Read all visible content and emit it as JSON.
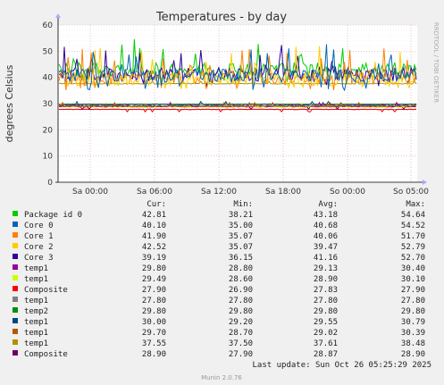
{
  "chart_data": {
    "type": "line",
    "title": "Temperatures - by day",
    "ylabel": "degrees Celsius",
    "ylim": [
      0,
      60
    ],
    "yticks": [
      "0",
      "10",
      "20",
      "30",
      "40",
      "50",
      "60"
    ],
    "x_ticks": [
      "Sa 00:00",
      "Sa 06:00",
      "Sa 12:00",
      "Sa 18:00",
      "So 00:00",
      "So 05:00"
    ],
    "side_label": "RRDTOOL / TOBI OETIKER",
    "grid": true,
    "legend_headers": [
      "Cur:",
      "Min:",
      "Avg:",
      "Max:"
    ],
    "series": [
      {
        "name": "Package id 0",
        "color": "#00cc00",
        "cur": "42.81",
        "min": "38.21",
        "avg": "43.18",
        "max": "54.64"
      },
      {
        "name": "Core 0",
        "color": "#0066b3",
        "cur": "40.10",
        "min": "35.00",
        "avg": "40.68",
        "max": "54.52"
      },
      {
        "name": "Core 1",
        "color": "#ff8000",
        "cur": "41.90",
        "min": "35.07",
        "avg": "40.06",
        "max": "51.70"
      },
      {
        "name": "Core 2",
        "color": "#ffcc00",
        "cur": "42.52",
        "min": "35.07",
        "avg": "39.47",
        "max": "52.79"
      },
      {
        "name": "Core 3",
        "color": "#330099",
        "cur": "39.19",
        "min": "36.15",
        "avg": "41.16",
        "max": "52.70"
      },
      {
        "name": "temp1",
        "color": "#990099",
        "cur": "29.80",
        "min": "28.80",
        "avg": "29.13",
        "max": "30.40"
      },
      {
        "name": "temp1",
        "color": "#ccff00",
        "cur": "29.49",
        "min": "28.60",
        "avg": "28.90",
        "max": "30.10"
      },
      {
        "name": "Composite",
        "color": "#ff0000",
        "cur": "27.90",
        "min": "26.90",
        "avg": "27.83",
        "max": "27.90"
      },
      {
        "name": "temp1",
        "color": "#808080",
        "cur": "27.80",
        "min": "27.80",
        "avg": "27.80",
        "max": "27.80"
      },
      {
        "name": "temp2",
        "color": "#008f00",
        "cur": "29.80",
        "min": "29.80",
        "avg": "29.80",
        "max": "29.80"
      },
      {
        "name": "temp1",
        "color": "#00487d",
        "cur": "30.00",
        "min": "29.20",
        "avg": "29.55",
        "max": "30.79"
      },
      {
        "name": "temp1",
        "color": "#b35a00",
        "cur": "29.70",
        "min": "28.70",
        "avg": "29.02",
        "max": "30.39"
      },
      {
        "name": "temp1",
        "color": "#b38f00",
        "cur": "37.55",
        "min": "37.50",
        "avg": "37.61",
        "max": "38.48"
      },
      {
        "name": "Composite",
        "color": "#6b006b",
        "cur": "28.90",
        "min": "27.90",
        "avg": "28.87",
        "max": "28.90"
      }
    ]
  },
  "footer": {
    "last_update": "Last update: Sun Oct 26 05:25:29 2025",
    "version": "Munin 2.0.76"
  }
}
